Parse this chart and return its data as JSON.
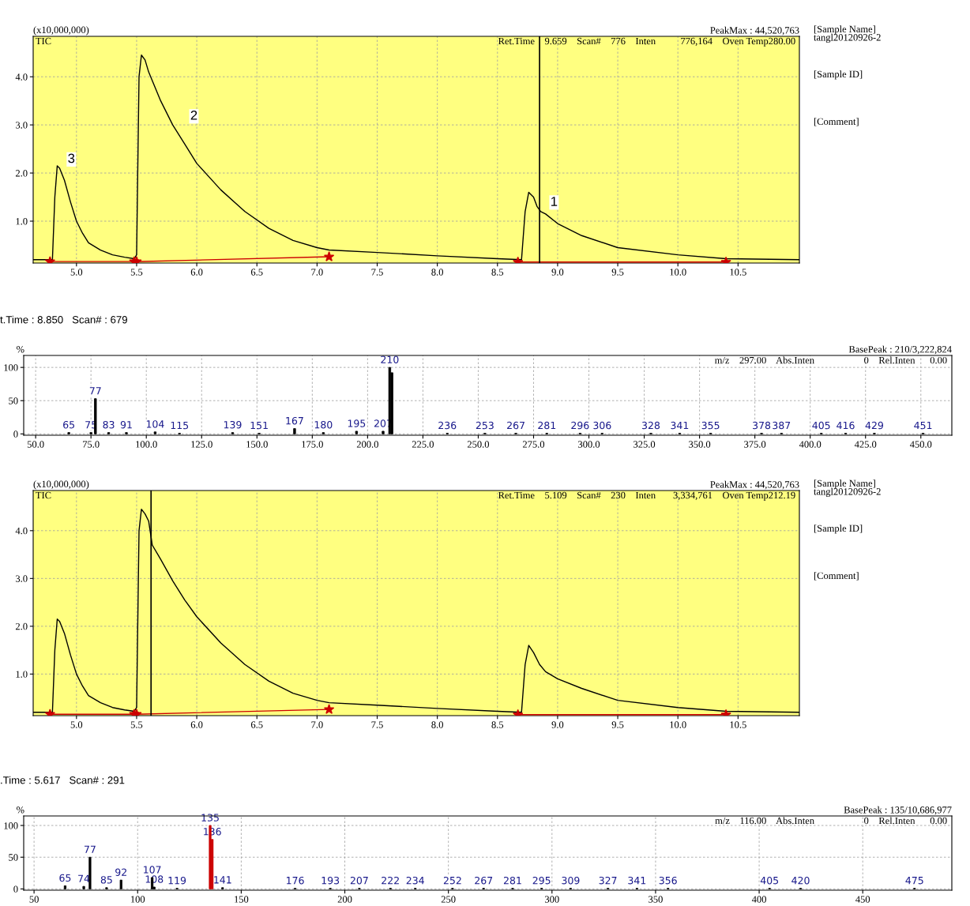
{
  "chart_data": [
    {
      "type": "line",
      "ylabel": "(x10,000,000)",
      "xlim": [
        4.64,
        11.01
      ],
      "ylim": [
        0.13,
        4.84
      ],
      "grid": true,
      "xticks": [
        {
          "value": 5,
          "label": "5.0"
        },
        5.5,
        {
          "value": 6,
          "label": "6.0"
        },
        6.5,
        {
          "value": 7,
          "label": "7.0"
        },
        7.5,
        {
          "value": 8,
          "label": "8.0"
        },
        8.5,
        {
          "value": 9,
          "label": "9.0"
        },
        9.5,
        {
          "value": 10,
          "label": "10.0"
        },
        10.5
      ],
      "yticks": [
        {
          "value": 1,
          "label": "1.0"
        },
        {
          "value": 2,
          "label": "2.0"
        },
        {
          "value": 3,
          "label": "3.0"
        },
        {
          "value": 4,
          "label": "4.0"
        }
      ],
      "annotations": [
        "TIC",
        "PeakMax : 44,520,763",
        "Ret.Time    9.659    Scan#    776    Inten          776,164    Oven Temp280.00",
        "[Sample Name]\ntangl20120926-2",
        "[Sample ID]",
        "[Comment]",
        "3",
        "2",
        "1"
      ],
      "ref_lines": [
        {
          "axis": "x",
          "value": 8.85,
          "color": "#000000"
        }
      ],
      "series": [
        {
          "type": "line",
          "color": "#000000",
          "x": [
            4.64,
            4.8,
            4.82,
            4.84,
            4.86,
            4.9,
            4.95,
            5.0,
            5.05,
            5.1,
            5.2,
            5.3,
            5.4,
            5.48,
            5.5,
            5.52,
            5.54,
            5.57,
            5.6,
            5.7,
            5.8,
            5.9,
            6.0,
            6.2,
            6.4,
            6.6,
            6.8,
            7.0,
            7.1,
            7.5,
            8.0,
            8.5,
            8.7,
            8.73,
            8.76,
            8.8,
            8.83,
            8.86,
            8.9,
            9.0,
            9.2,
            9.5,
            10.0,
            10.4,
            11.01
          ],
          "values": [
            0.2,
            0.2,
            1.5,
            2.15,
            2.1,
            1.85,
            1.4,
            1.0,
            0.75,
            0.55,
            0.4,
            0.3,
            0.25,
            0.22,
            0.3,
            4.0,
            4.45,
            4.35,
            4.1,
            3.5,
            3.0,
            2.6,
            2.2,
            1.65,
            1.2,
            0.85,
            0.6,
            0.45,
            0.4,
            0.35,
            0.28,
            0.22,
            0.2,
            1.2,
            1.6,
            1.5,
            1.3,
            1.2,
            1.15,
            0.95,
            0.7,
            0.45,
            0.3,
            0.22,
            0.2
          ]
        },
        {
          "type": "line",
          "color": "#cc0000",
          "marker": "star",
          "x": [
            4.78,
            5.48
          ],
          "values": [
            0.16,
            0.16
          ]
        },
        {
          "type": "line",
          "color": "#cc0000",
          "marker": "star",
          "x": [
            5.5,
            7.1
          ],
          "values": [
            0.16,
            0.26
          ]
        },
        {
          "type": "line",
          "color": "#cc0000",
          "marker": "star",
          "x": [
            8.67,
            10.4
          ],
          "values": [
            0.15,
            0.15
          ]
        }
      ]
    },
    {
      "type": "bar",
      "title": "t.Time : 8.850   Scan# : 679",
      "ylabel": "%",
      "xlim": [
        44.6,
        464
      ],
      "ylim": [
        -2,
        118
      ],
      "grid": true,
      "xticks": [
        {
          "value": 50,
          "label": "50.0"
        },
        {
          "value": 75,
          "label": "75.0"
        },
        {
          "value": 100,
          "label": "100.0"
        },
        {
          "value": 125,
          "label": "125.0"
        },
        {
          "value": 150,
          "label": "150.0"
        },
        {
          "value": 175,
          "label": "175.0"
        },
        {
          "value": 200,
          "label": "200.0"
        },
        {
          "value": 225,
          "label": "225.0"
        },
        {
          "value": 250,
          "label": "250.0"
        },
        {
          "value": 275,
          "label": "275.0"
        },
        {
          "value": 300,
          "label": "300.0"
        },
        {
          "value": 325,
          "label": "325.0"
        },
        {
          "value": 350,
          "label": "350.0"
        },
        {
          "value": 375,
          "label": "375.0"
        },
        {
          "value": 400,
          "label": "400.0"
        },
        {
          "value": 425,
          "label": "425.0"
        },
        {
          "value": 450,
          "label": "450.0"
        }
      ],
      "yticks": [
        0,
        50,
        100
      ],
      "annotations": [
        "BasePeak : 210/3,222,824",
        "m/z    297.00    Abs.Inten                    0    Rel.Inten      0.00",
        {
          "text": "65",
          "x": 65,
          "y": 2
        },
        {
          "text": "75",
          "x": 75,
          "y": 2
        },
        {
          "text": "77",
          "x": 77,
          "y": 53
        },
        {
          "text": "83",
          "x": 83,
          "y": 2
        },
        {
          "text": "91",
          "x": 91,
          "y": 2
        },
        {
          "text": "104",
          "x": 104,
          "y": 3
        },
        {
          "text": "115",
          "x": 115,
          "y": 1
        },
        {
          "text": "139",
          "x": 139,
          "y": 2
        },
        {
          "text": "151",
          "x": 151,
          "y": 1
        },
        {
          "text": "167",
          "x": 167,
          "y": 8
        },
        {
          "text": "180",
          "x": 180,
          "y": 2
        },
        {
          "text": "195",
          "x": 195,
          "y": 4
        },
        {
          "text": "207",
          "x": 207,
          "y": 4
        },
        {
          "text": "210",
          "x": 210,
          "y": 100
        },
        {
          "text": "236",
          "x": 236,
          "y": 1
        },
        {
          "text": "253",
          "x": 253,
          "y": 1
        },
        {
          "text": "267",
          "x": 267,
          "y": 1
        },
        {
          "text": "281",
          "x": 281,
          "y": 1
        },
        {
          "text": "296",
          "x": 296,
          "y": 1
        },
        {
          "text": "306",
          "x": 306,
          "y": 1
        },
        {
          "text": "328",
          "x": 328,
          "y": 1
        },
        {
          "text": "341",
          "x": 341,
          "y": 1
        },
        {
          "text": "355",
          "x": 355,
          "y": 1
        },
        {
          "text": "378",
          "x": 378,
          "y": 1
        },
        {
          "text": "387",
          "x": 387,
          "y": 1
        },
        {
          "text": "405",
          "x": 405,
          "y": 1
        },
        {
          "text": "416",
          "x": 416,
          "y": 1
        },
        {
          "text": "429",
          "x": 429,
          "y": 1
        },
        {
          "text": "451",
          "x": 451,
          "y": 1
        }
      ],
      "x": [
        65,
        75,
        77,
        83,
        91,
        104,
        115,
        139,
        151,
        167,
        180,
        195,
        207,
        210,
        211,
        236,
        253,
        267,
        281,
        296,
        306,
        328,
        341,
        355,
        378,
        387,
        405,
        416,
        429,
        451
      ],
      "values": [
        2,
        2,
        53,
        2,
        2,
        3,
        1,
        2,
        1,
        8,
        2,
        4,
        4,
        100,
        92,
        1,
        1,
        1,
        1,
        1,
        1,
        1,
        1,
        1,
        1,
        1,
        1,
        1,
        1,
        1
      ],
      "color": "#000000"
    },
    {
      "type": "line",
      "ylabel": "(x10,000,000)",
      "xlim": [
        4.64,
        11.01
      ],
      "ylim": [
        0.13,
        4.84
      ],
      "grid": true,
      "xticks": [
        {
          "value": 5,
          "label": "5.0"
        },
        5.5,
        {
          "value": 6,
          "label": "6.0"
        },
        6.5,
        {
          "value": 7,
          "label": "7.0"
        },
        7.5,
        {
          "value": 8,
          "label": "8.0"
        },
        8.5,
        {
          "value": 9,
          "label": "9.0"
        },
        9.5,
        {
          "value": 10,
          "label": "10.0"
        },
        10.5
      ],
      "yticks": [
        {
          "value": 1,
          "label": "1.0"
        },
        {
          "value": 2,
          "label": "2.0"
        },
        {
          "value": 3,
          "label": "3.0"
        },
        {
          "value": 4,
          "label": "4.0"
        }
      ],
      "annotations": [
        "TIC",
        "PeakMax : 44,520,763",
        "Ret.Time    5.109    Scan#    230    Inten       3,334,761    Oven Temp212.19",
        "[Sample Name]\ntangl20120926-2",
        "[Sample ID]",
        "[Comment]"
      ],
      "ref_lines": [
        {
          "axis": "x",
          "value": 5.62,
          "color": "#000000"
        }
      ],
      "series": [
        {
          "type": "line",
          "color": "#000000",
          "x": [
            4.64,
            4.8,
            4.82,
            4.84,
            4.86,
            4.9,
            4.95,
            5.0,
            5.05,
            5.1,
            5.2,
            5.3,
            5.4,
            5.48,
            5.5,
            5.52,
            5.54,
            5.57,
            5.6,
            5.63,
            5.7,
            5.8,
            5.9,
            6.0,
            6.2,
            6.4,
            6.6,
            6.8,
            7.0,
            7.1,
            7.5,
            8.0,
            8.5,
            8.7,
            8.73,
            8.76,
            8.8,
            8.85,
            8.9,
            9.0,
            9.2,
            9.5,
            10.0,
            10.4,
            11.01
          ],
          "values": [
            0.2,
            0.2,
            1.5,
            2.15,
            2.1,
            1.85,
            1.4,
            1.0,
            0.75,
            0.55,
            0.4,
            0.3,
            0.25,
            0.22,
            0.3,
            4.0,
            4.45,
            4.35,
            4.2,
            3.7,
            3.4,
            2.95,
            2.55,
            2.2,
            1.65,
            1.2,
            0.85,
            0.6,
            0.45,
            0.4,
            0.35,
            0.28,
            0.22,
            0.2,
            1.2,
            1.6,
            1.45,
            1.2,
            1.05,
            0.9,
            0.7,
            0.45,
            0.3,
            0.22,
            0.2
          ]
        },
        {
          "type": "line",
          "color": "#cc0000",
          "marker": "star",
          "x": [
            4.78,
            5.48
          ],
          "values": [
            0.16,
            0.16
          ]
        },
        {
          "type": "line",
          "color": "#cc0000",
          "marker": "star",
          "x": [
            5.5,
            7.1
          ],
          "values": [
            0.16,
            0.26
          ]
        },
        {
          "type": "line",
          "color": "#cc0000",
          "marker": "star",
          "x": [
            8.67,
            10.4
          ],
          "values": [
            0.15,
            0.15
          ]
        }
      ]
    },
    {
      "type": "bar",
      "title": ".Time : 5.617   Scan# : 291",
      "ylabel": "%",
      "xlim": [
        45,
        493
      ],
      "ylim": [
        -2,
        115
      ],
      "grid": true,
      "xticks": [
        50,
        100,
        150,
        200,
        250,
        300,
        350,
        400,
        450
      ],
      "yticks": [
        0,
        50,
        100
      ],
      "annotations": [
        "BasePeak : 135/10,686,977",
        "m/z    116.00    Abs.Inten                    0    Rel.Inten      0.00",
        {
          "text": "65",
          "x": 65,
          "y": 5
        },
        {
          "text": "74",
          "x": 74,
          "y": 4
        },
        {
          "text": "77",
          "x": 77,
          "y": 50
        },
        {
          "text": "85",
          "x": 85,
          "y": 2
        },
        {
          "text": "92",
          "x": 92,
          "y": 14
        },
        {
          "text": "107",
          "x": 107,
          "y": 18
        },
        {
          "text": "108",
          "x": 108,
          "y": 3
        },
        {
          "text": "119",
          "x": 119,
          "y": 1
        },
        {
          "text": "135",
          "x": 135,
          "y": 100
        },
        {
          "text": "136",
          "x": 136,
          "y": 78
        },
        {
          "text": "141",
          "x": 141,
          "y": 2
        },
        {
          "text": "176",
          "x": 176,
          "y": 1
        },
        {
          "text": "193",
          "x": 193,
          "y": 1
        },
        {
          "text": "207",
          "x": 207,
          "y": 1
        },
        {
          "text": "222",
          "x": 222,
          "y": 1
        },
        {
          "text": "234",
          "x": 234,
          "y": 1
        },
        {
          "text": "252",
          "x": 252,
          "y": 1
        },
        {
          "text": "267",
          "x": 267,
          "y": 1
        },
        {
          "text": "281",
          "x": 281,
          "y": 1
        },
        {
          "text": "295",
          "x": 295,
          "y": 1
        },
        {
          "text": "309",
          "x": 309,
          "y": 1
        },
        {
          "text": "327",
          "x": 327,
          "y": 1
        },
        {
          "text": "341",
          "x": 341,
          "y": 1
        },
        {
          "text": "356",
          "x": 356,
          "y": 1
        },
        {
          "text": "405",
          "x": 405,
          "y": 1
        },
        {
          "text": "420",
          "x": 420,
          "y": 1
        },
        {
          "text": "475",
          "x": 475,
          "y": 1
        }
      ],
      "x": [
        65,
        74,
        77,
        85,
        92,
        107,
        108,
        119,
        135,
        136,
        141,
        176,
        193,
        207,
        222,
        234,
        252,
        267,
        281,
        295,
        309,
        327,
        341,
        356,
        405,
        420,
        475
      ],
      "values": [
        5,
        4,
        50,
        2,
        14,
        18,
        3,
        1,
        100,
        78,
        2,
        1,
        1,
        1,
        1,
        1,
        1,
        1,
        1,
        1,
        1,
        1,
        1,
        1,
        1,
        1,
        1
      ],
      "colors": [
        "#000000",
        "#000000",
        "#000000",
        "#000000",
        "#000000",
        "#000000",
        "#000000",
        "#000000",
        "#cc0000",
        "#cc0000",
        "#000000",
        "#000000",
        "#000000",
        "#000000",
        "#000000",
        "#000000",
        "#000000",
        "#000000",
        "#000000",
        "#000000",
        "#000000",
        "#000000",
        "#000000",
        "#000000",
        "#000000",
        "#000000",
        "#000000"
      ]
    }
  ]
}
